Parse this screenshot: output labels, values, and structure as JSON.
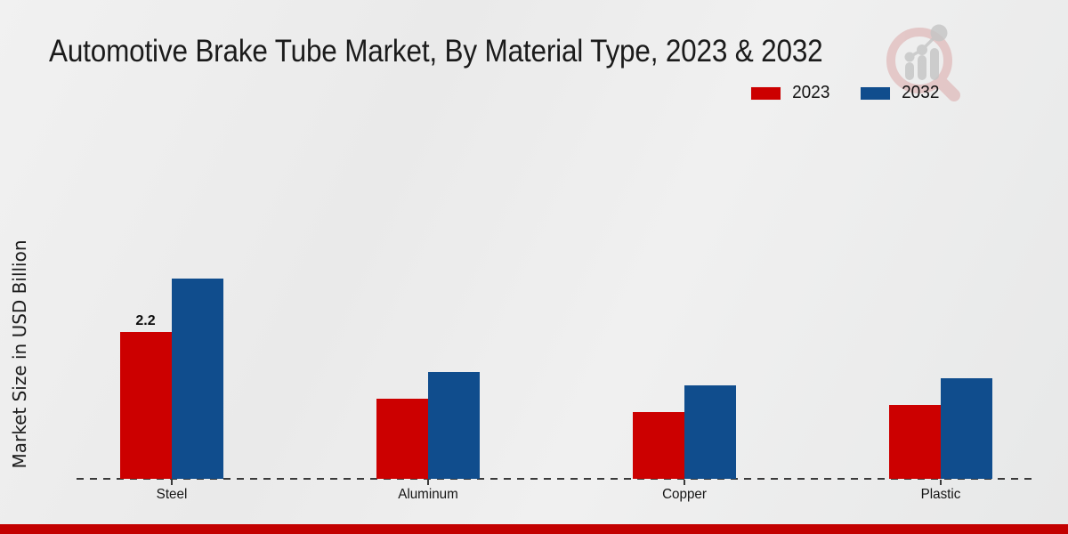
{
  "page": {
    "title": "Automotive Brake Tube Market, By Material Type, 2023 & 2032"
  },
  "legend": {
    "items": [
      {
        "label": "2023",
        "color": "#cc0000"
      },
      {
        "label": "2032",
        "color": "#104d8d"
      }
    ]
  },
  "chart_data": {
    "type": "bar",
    "title": "Automotive Brake Tube Market, By Material Type, 2023 & 2032",
    "categories": [
      "Steel",
      "Aluminum",
      "Copper",
      "Plastic"
    ],
    "series": [
      {
        "name": "2023",
        "color": "#cc0000",
        "values": [
          2.2,
          1.2,
          1.0,
          1.1
        ]
      },
      {
        "name": "2032",
        "color": "#104d8d",
        "values": [
          3.0,
          1.6,
          1.4,
          1.5
        ]
      }
    ],
    "xlabel": "",
    "ylabel": "Market Size in USD Billion",
    "ylim": [
      0,
      3.5
    ],
    "grid": false,
    "legend_position": "top-right",
    "baseline_style": "dashed",
    "annotations": [
      {
        "category": "Steel",
        "series": "2023",
        "text": "2.2"
      }
    ]
  },
  "icons": {
    "logo": "magnifier-bar-chart-watermark-icon"
  },
  "colors": {
    "accent_red": "#cc0000",
    "accent_blue": "#104d8d",
    "footer_bar": "#c30000",
    "background": "#ececec",
    "logo_ring_pink": "#d79a9a",
    "logo_gray": "#c5c5c5"
  }
}
